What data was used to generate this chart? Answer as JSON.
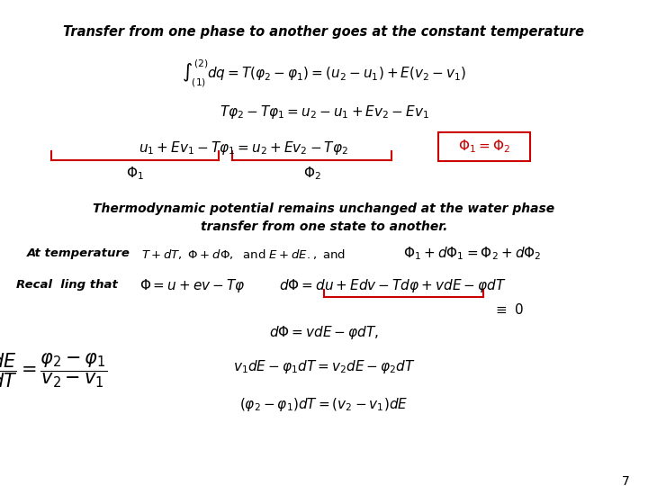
{
  "title": "Transfer from one phase to another goes at the constant temperature",
  "bg_color": "#ffffff",
  "text_color": "#000000",
  "red_color": "#cc0000",
  "page_number": "7",
  "title_fontsize": 10.5,
  "eq_fontsize": 11,
  "small_fontsize": 9.5,
  "thermo_fontsize": 10,
  "large_eq_fontsize": 15
}
